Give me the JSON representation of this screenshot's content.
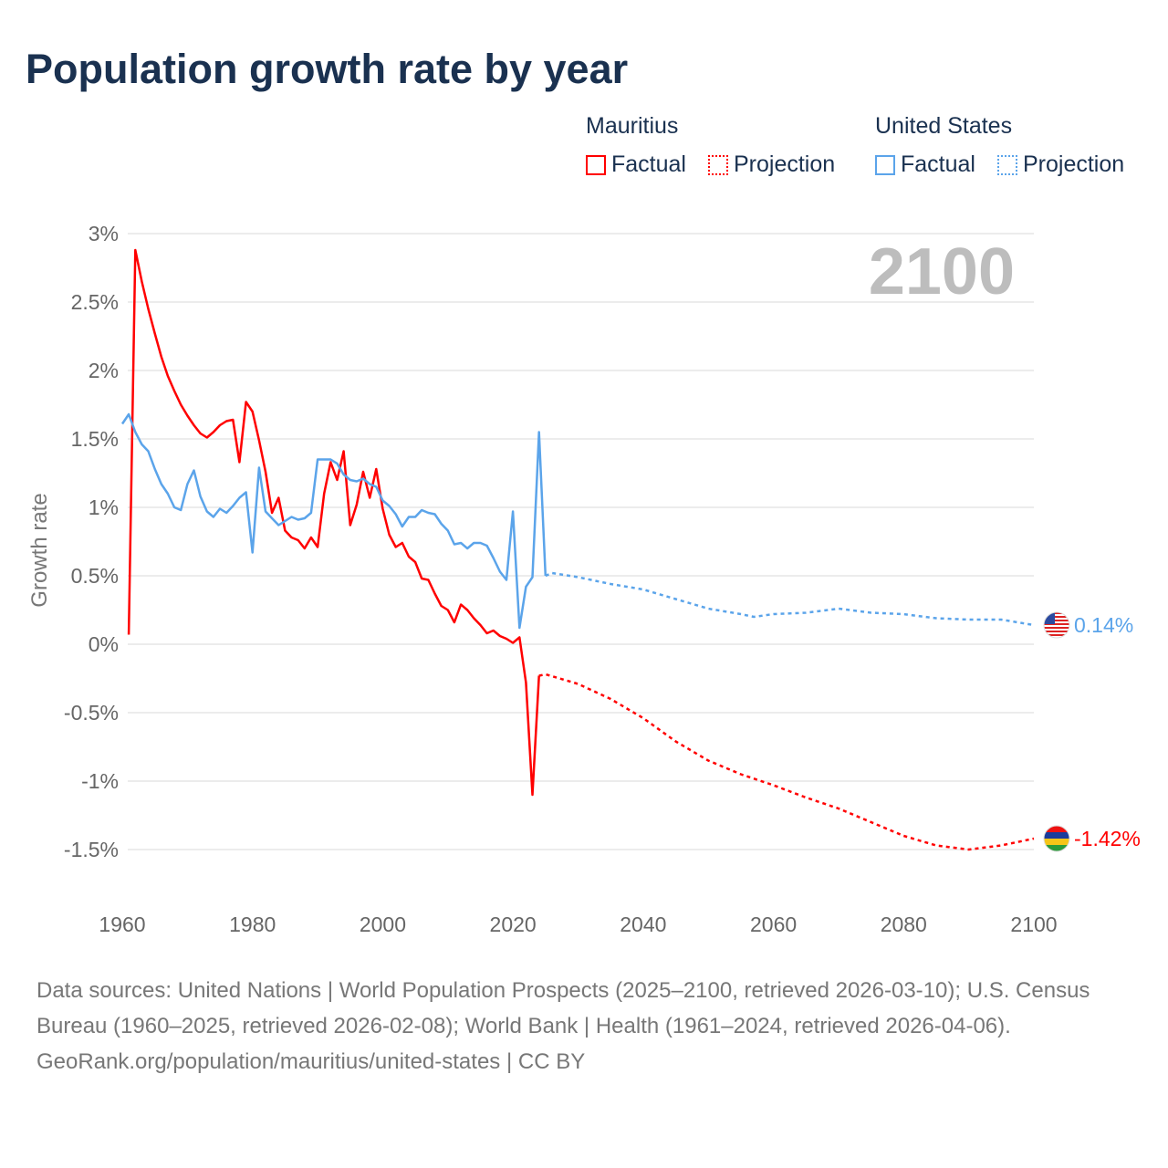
{
  "title": "Population growth rate by year",
  "legend": {
    "groups": [
      {
        "name": "Mauritius",
        "color": "#ff0000",
        "factual": "Factual",
        "projection": "Projection"
      },
      {
        "name": "United States",
        "color": "#5ba4ea",
        "factual": "Factual",
        "projection": "Projection"
      }
    ]
  },
  "year_label": "2100",
  "footer": {
    "sources": "Data sources: United Nations | World Population Prospects (2025–2100, retrieved 2026-03-10); U.S. Census Bureau (1960–2025, retrieved 2026-02-08); World Bank | Health (1961–2024, retrieved 2026-04-06).",
    "credit": "GeoRank.org/population/mauritius/united-states | CC BY"
  },
  "chart_data": {
    "type": "line",
    "title": "Population growth rate by year",
    "xlabel": "",
    "ylabel": "Growth rate",
    "xlim": [
      1960,
      2100
    ],
    "ylim": [
      -1.5,
      3
    ],
    "x_ticks": [
      "1960",
      "1980",
      "2000",
      "2020",
      "2040",
      "2060",
      "2080",
      "2100"
    ],
    "y_ticks": [
      "3%",
      "2.5%",
      "2%",
      "1.5%",
      "1%",
      "0.5%",
      "0%",
      "-0.5%",
      "-1%",
      "-1.5%"
    ],
    "y_tick_values": [
      3,
      2.5,
      2,
      1.5,
      1,
      0.5,
      0,
      -0.5,
      -1,
      -1.5
    ],
    "grid": true,
    "series": [
      {
        "name": "Mauritius",
        "kind": "Factual",
        "color": "#ff0000",
        "end_label": "-1.42%",
        "x": [
          1961,
          1962,
          1963,
          1964,
          1965,
          1966,
          1967,
          1968,
          1969,
          1970,
          1971,
          1972,
          1973,
          1974,
          1975,
          1976,
          1977,
          1978,
          1979,
          1980,
          1981,
          1982,
          1983,
          1984,
          1985,
          1986,
          1987,
          1988,
          1989,
          1990,
          1991,
          1992,
          1993,
          1994,
          1995,
          1996,
          1997,
          1998,
          1999,
          2000,
          2001,
          2002,
          2003,
          2004,
          2005,
          2006,
          2007,
          2008,
          2009,
          2010,
          2011,
          2012,
          2013,
          2014,
          2015,
          2016,
          2017,
          2018,
          2019,
          2020,
          2021,
          2022,
          2023,
          2024
        ],
        "y": [
          0.07,
          2.88,
          2.65,
          2.45,
          2.27,
          2.1,
          1.96,
          1.85,
          1.75,
          1.67,
          1.6,
          1.54,
          1.51,
          1.55,
          1.6,
          1.63,
          1.64,
          1.33,
          1.77,
          1.7,
          1.49,
          1.26,
          0.96,
          1.07,
          0.83,
          0.78,
          0.76,
          0.7,
          0.78,
          0.71,
          1.1,
          1.33,
          1.2,
          1.41,
          0.87,
          1.02,
          1.26,
          1.07,
          1.28,
          0.99,
          0.8,
          0.71,
          0.74,
          0.64,
          0.6,
          0.48,
          0.47,
          0.37,
          0.28,
          0.25,
          0.16,
          0.29,
          0.25,
          0.19,
          0.14,
          0.08,
          0.1,
          0.06,
          0.04,
          0.01,
          0.05,
          -0.28,
          -1.1,
          -0.23
        ]
      },
      {
        "name": "Mauritius",
        "kind": "Projection",
        "color": "#ff0000",
        "x": [
          2024,
          2025,
          2030,
          2035,
          2040,
          2045,
          2050,
          2055,
          2060,
          2065,
          2070,
          2075,
          2080,
          2085,
          2090,
          2095,
          2100
        ],
        "y": [
          -0.23,
          -0.22,
          -0.29,
          -0.4,
          -0.54,
          -0.71,
          -0.85,
          -0.95,
          -1.03,
          -1.12,
          -1.2,
          -1.3,
          -1.4,
          -1.47,
          -1.5,
          -1.47,
          -1.42
        ]
      },
      {
        "name": "United States",
        "kind": "Factual",
        "color": "#5ba4ea",
        "end_label": "0.14%",
        "x": [
          1960,
          1961,
          1962,
          1963,
          1964,
          1965,
          1966,
          1967,
          1968,
          1969,
          1970,
          1971,
          1972,
          1973,
          1974,
          1975,
          1976,
          1977,
          1978,
          1979,
          1980,
          1981,
          1982,
          1983,
          1984,
          1985,
          1986,
          1987,
          1988,
          1989,
          1990,
          1991,
          1992,
          1993,
          1994,
          1995,
          1996,
          1997,
          1998,
          1999,
          2000,
          2001,
          2002,
          2003,
          2004,
          2005,
          2006,
          2007,
          2008,
          2009,
          2010,
          2011,
          2012,
          2013,
          2014,
          2015,
          2016,
          2017,
          2018,
          2019,
          2020,
          2021,
          2022,
          2023,
          2024,
          2025
        ],
        "y": [
          1.61,
          1.68,
          1.55,
          1.46,
          1.41,
          1.28,
          1.17,
          1.1,
          1.0,
          0.98,
          1.17,
          1.27,
          1.08,
          0.97,
          0.93,
          0.99,
          0.96,
          1.01,
          1.07,
          1.11,
          0.67,
          1.29,
          0.97,
          0.92,
          0.87,
          0.9,
          0.93,
          0.91,
          0.92,
          0.96,
          1.35,
          1.35,
          1.35,
          1.32,
          1.24,
          1.2,
          1.19,
          1.21,
          1.17,
          1.15,
          1.05,
          1.01,
          0.95,
          0.86,
          0.93,
          0.93,
          0.98,
          0.96,
          0.95,
          0.88,
          0.83,
          0.73,
          0.74,
          0.7,
          0.74,
          0.74,
          0.72,
          0.63,
          0.53,
          0.47,
          0.97,
          0.12,
          0.42,
          0.49,
          1.55,
          0.5
        ]
      },
      {
        "name": "United States",
        "kind": "Projection",
        "color": "#5ba4ea",
        "x": [
          2025,
          2026,
          2030,
          2035,
          2040,
          2045,
          2050,
          2055,
          2057,
          2060,
          2065,
          2070,
          2075,
          2080,
          2085,
          2090,
          2095,
          2100
        ],
        "y": [
          0.5,
          0.52,
          0.49,
          0.44,
          0.4,
          0.33,
          0.26,
          0.22,
          0.2,
          0.22,
          0.23,
          0.26,
          0.23,
          0.22,
          0.19,
          0.18,
          0.18,
          0.14
        ]
      }
    ]
  }
}
